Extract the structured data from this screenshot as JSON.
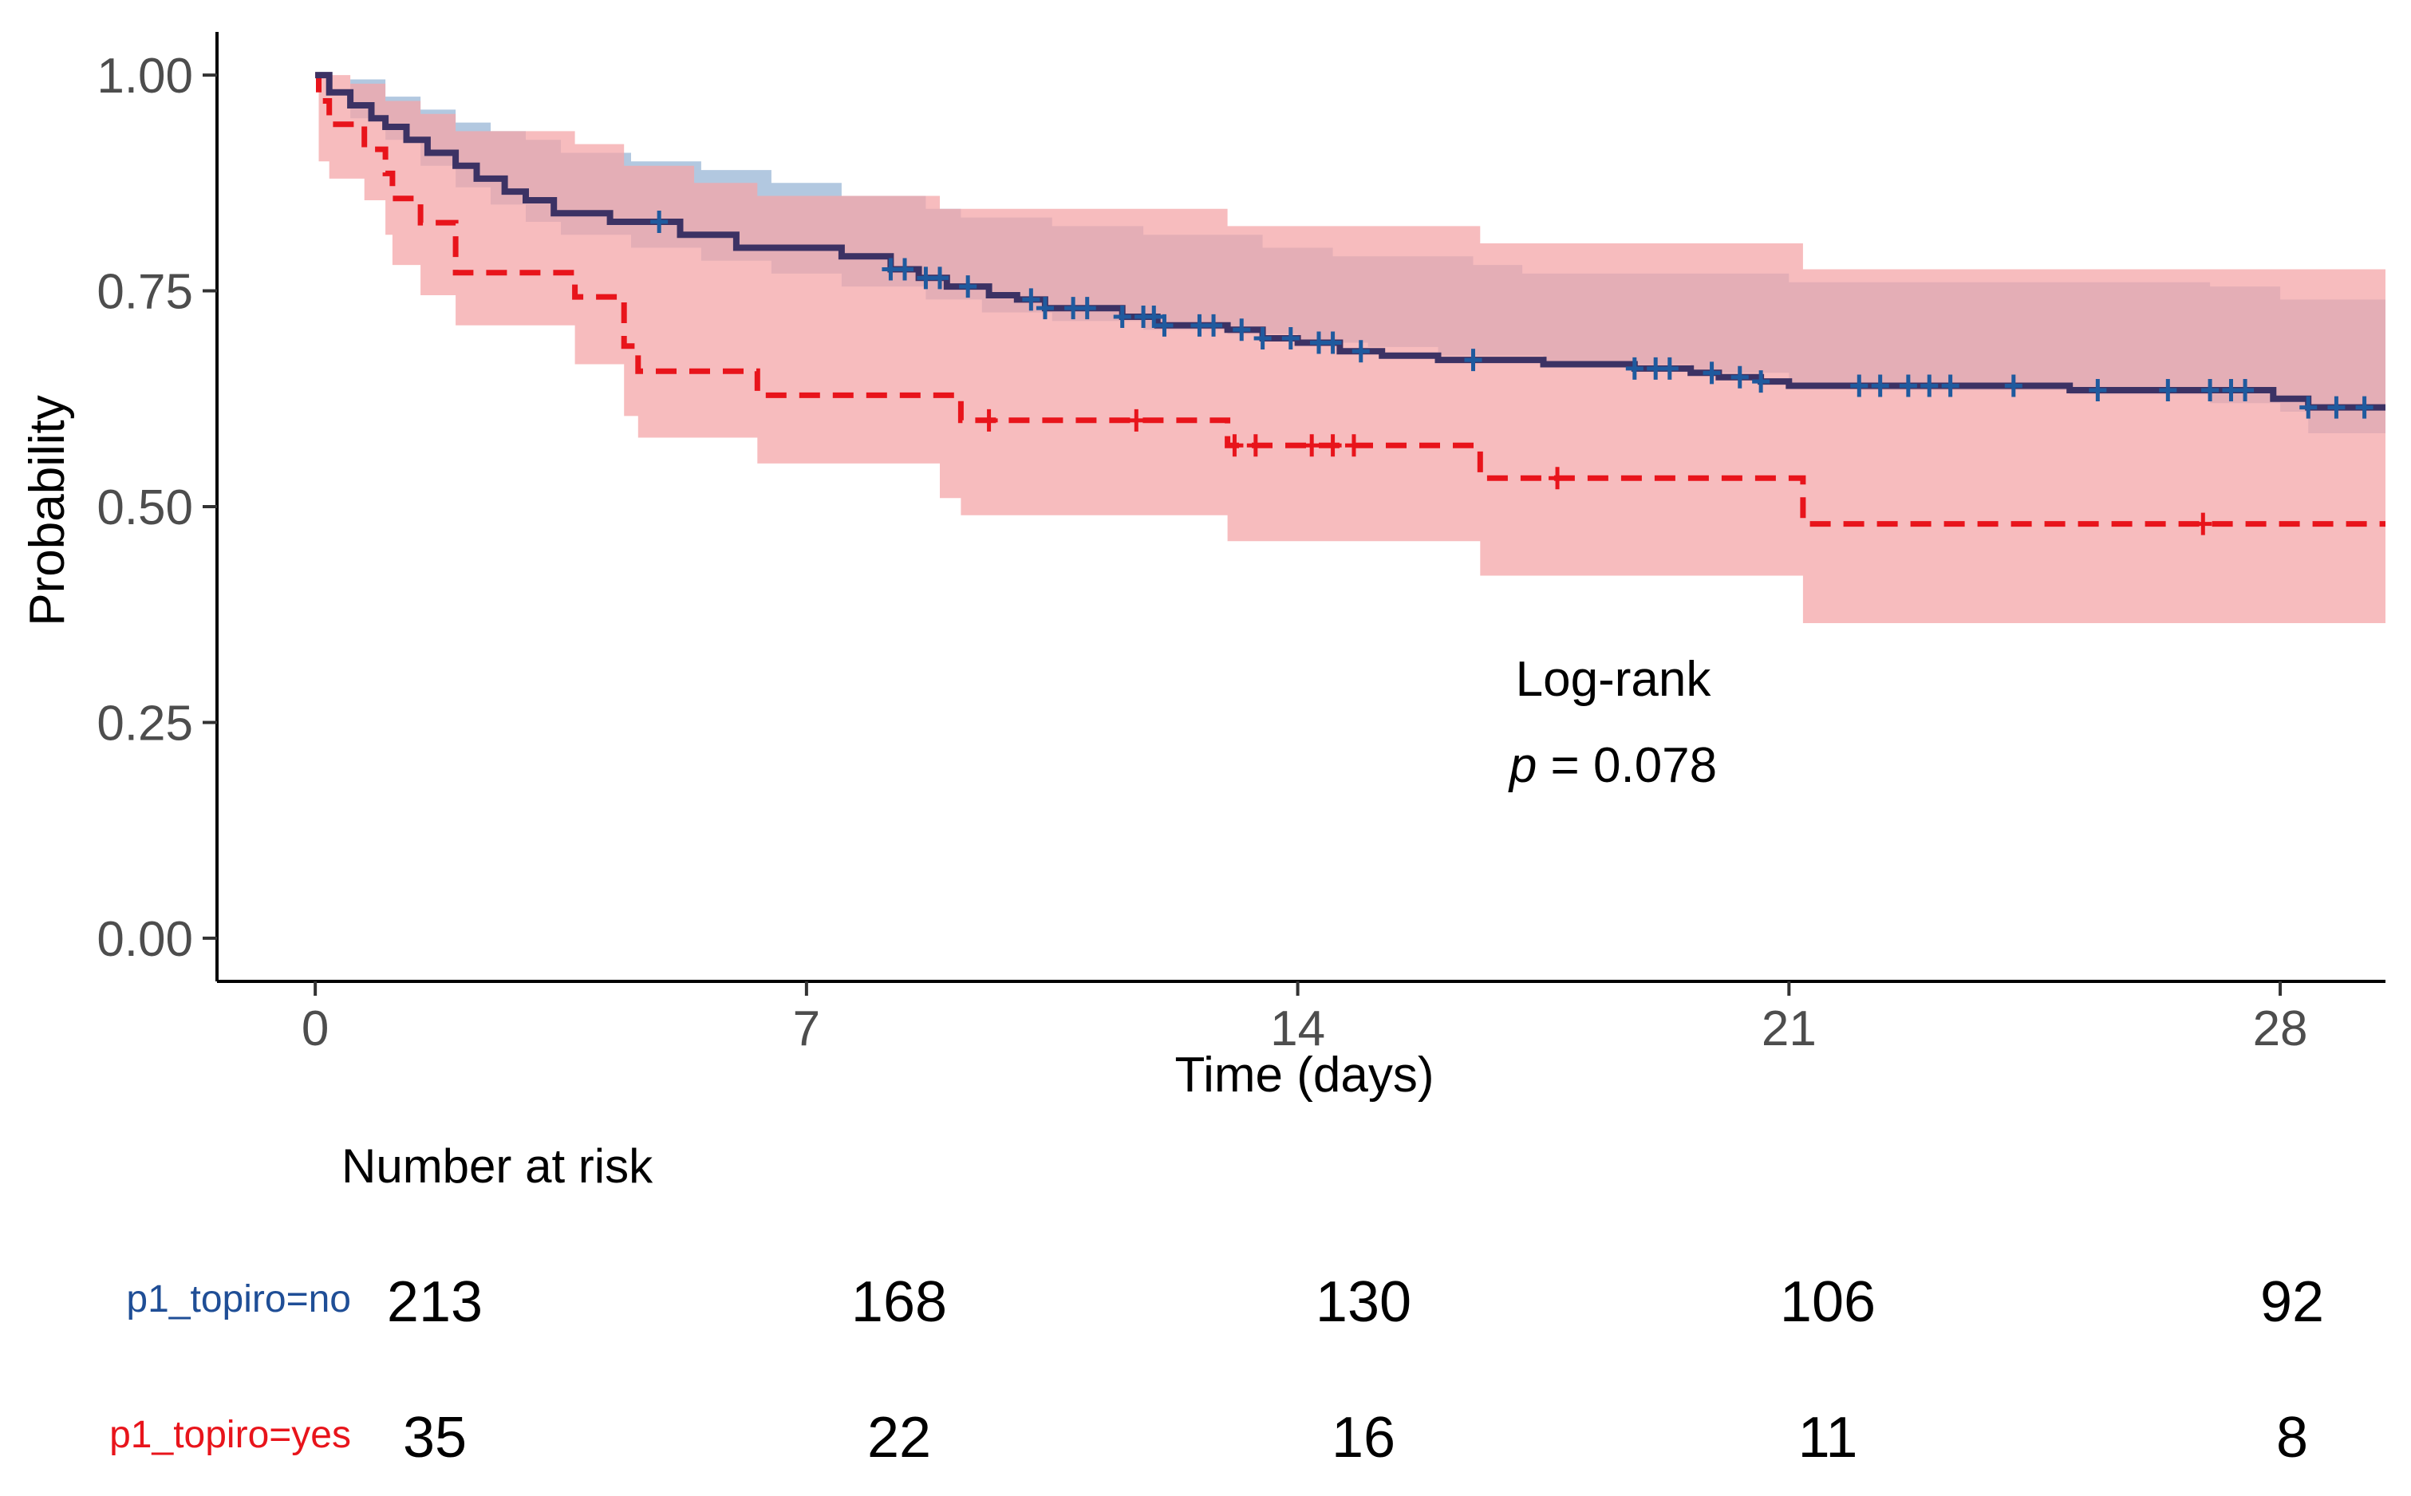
{
  "chart_data": {
    "type": "line",
    "subtype": "kaplan-meier",
    "xlabel": "Time (days)",
    "ylabel": "Probability",
    "xlim": [
      -1.4,
      29.5
    ],
    "ylim": [
      -0.05,
      1.05
    ],
    "x_ticks": [
      0,
      7,
      14,
      21,
      28
    ],
    "x_tick_labels": [
      "0",
      "7",
      "14",
      "21",
      "28"
    ],
    "y_ticks": [
      0,
      0.25,
      0.5,
      0.75,
      1.0
    ],
    "y_tick_labels": [
      "0.00",
      "0.25",
      "0.50",
      "0.75",
      "1.00"
    ],
    "grid": false,
    "annotation": {
      "line1": "Log-rank",
      "p_symbol": "p",
      "p_text": " = 0.078"
    },
    "series": [
      {
        "name": "p1_topiro=no",
        "color": "#1f4e96",
        "ci_color": "#7ea3cc",
        "dash": false,
        "steps": [
          [
            0,
            1.0
          ],
          [
            0.2,
            0.98
          ],
          [
            0.5,
            0.965
          ],
          [
            0.8,
            0.95
          ],
          [
            1.0,
            0.94
          ],
          [
            1.3,
            0.925
          ],
          [
            1.6,
            0.91
          ],
          [
            2.0,
            0.895
          ],
          [
            2.3,
            0.88
          ],
          [
            2.7,
            0.865
          ],
          [
            3.0,
            0.855
          ],
          [
            3.4,
            0.84
          ],
          [
            4.2,
            0.83
          ],
          [
            5.2,
            0.815
          ],
          [
            6.0,
            0.8
          ],
          [
            7.5,
            0.79
          ],
          [
            8.2,
            0.775
          ],
          [
            8.6,
            0.765
          ],
          [
            9.0,
            0.755
          ],
          [
            9.6,
            0.745
          ],
          [
            10.0,
            0.74
          ],
          [
            10.4,
            0.73
          ],
          [
            11.5,
            0.72
          ],
          [
            12.0,
            0.71
          ],
          [
            13.0,
            0.705
          ],
          [
            13.5,
            0.695
          ],
          [
            14.0,
            0.69
          ],
          [
            14.6,
            0.68
          ],
          [
            15.2,
            0.675
          ],
          [
            16.0,
            0.67
          ],
          [
            17.5,
            0.665
          ],
          [
            18.8,
            0.66
          ],
          [
            19.6,
            0.655
          ],
          [
            20.0,
            0.65
          ],
          [
            20.6,
            0.645
          ],
          [
            21.0,
            0.64
          ],
          [
            25.0,
            0.635
          ],
          [
            27.9,
            0.625
          ],
          [
            28.4,
            0.615
          ],
          [
            29.5,
            0.615
          ]
        ],
        "ci_upper": [
          [
            0,
            1.0
          ],
          [
            0.5,
            0.995
          ],
          [
            1.0,
            0.975
          ],
          [
            1.5,
            0.96
          ],
          [
            2.0,
            0.945
          ],
          [
            2.5,
            0.935
          ],
          [
            3.0,
            0.925
          ],
          [
            3.5,
            0.91
          ],
          [
            4.5,
            0.9
          ],
          [
            5.5,
            0.89
          ],
          [
            6.5,
            0.875
          ],
          [
            7.5,
            0.86
          ],
          [
            8.7,
            0.845
          ],
          [
            9.2,
            0.835
          ],
          [
            10.5,
            0.825
          ],
          [
            11.8,
            0.815
          ],
          [
            13.5,
            0.8
          ],
          [
            14.5,
            0.79
          ],
          [
            16.5,
            0.78
          ],
          [
            17.2,
            0.77
          ],
          [
            21.0,
            0.76
          ],
          [
            27.0,
            0.755
          ],
          [
            28.0,
            0.74
          ],
          [
            29.5,
            0.74
          ]
        ],
        "ci_lower": [
          [
            0,
            1.0
          ],
          [
            0.5,
            0.95
          ],
          [
            1.0,
            0.925
          ],
          [
            1.5,
            0.895
          ],
          [
            2.0,
            0.87
          ],
          [
            2.5,
            0.85
          ],
          [
            3.0,
            0.83
          ],
          [
            3.5,
            0.815
          ],
          [
            4.5,
            0.8
          ],
          [
            5.5,
            0.785
          ],
          [
            6.5,
            0.77
          ],
          [
            7.5,
            0.755
          ],
          [
            8.7,
            0.74
          ],
          [
            9.5,
            0.725
          ],
          [
            10.5,
            0.715
          ],
          [
            11.8,
            0.705
          ],
          [
            13.0,
            0.7
          ],
          [
            14.0,
            0.69
          ],
          [
            15.0,
            0.685
          ],
          [
            16.0,
            0.675
          ],
          [
            17.5,
            0.665
          ],
          [
            19.6,
            0.655
          ],
          [
            21.0,
            0.64
          ],
          [
            22.0,
            0.635
          ],
          [
            25.0,
            0.63
          ],
          [
            27.0,
            0.62
          ],
          [
            28.0,
            0.61
          ],
          [
            28.4,
            0.595
          ],
          [
            28.4,
            0.585
          ],
          [
            29.5,
            0.585
          ]
        ],
        "censor_x": [
          4.9,
          8.2,
          8.4,
          8.7,
          8.9,
          9.3,
          10.2,
          10.4,
          10.8,
          11.0,
          11.5,
          11.8,
          11.95,
          12.1,
          12.6,
          12.8,
          13.2,
          13.5,
          13.9,
          14.3,
          14.5,
          14.9,
          16.5,
          18.8,
          19.1,
          19.3,
          19.9,
          20.3,
          20.6,
          22.0,
          22.3,
          22.7,
          23.0,
          23.3,
          24.2,
          25.4,
          26.4,
          27.0,
          27.3,
          27.5,
          28.4,
          28.8,
          29.2
        ]
      },
      {
        "name": "p1_topiro=yes",
        "color": "#e8141b",
        "ci_color": "#f4a6a8",
        "dash": true,
        "steps": [
          [
            0,
            1.0
          ],
          [
            0.05,
            0.97
          ],
          [
            0.2,
            0.943
          ],
          [
            0.7,
            0.914
          ],
          [
            1.0,
            0.886
          ],
          [
            1.1,
            0.857
          ],
          [
            1.5,
            0.829
          ],
          [
            2.0,
            0.771
          ],
          [
            3.7,
            0.743
          ],
          [
            4.4,
            0.686
          ],
          [
            4.6,
            0.657
          ],
          [
            5.4,
            0.657
          ],
          [
            6.3,
            0.629
          ],
          [
            8.9,
            0.629
          ],
          [
            9.2,
            0.6
          ],
          [
            13.0,
            0.571
          ],
          [
            16.6,
            0.533
          ],
          [
            21.2,
            0.48
          ],
          [
            29.5,
            0.48
          ]
        ],
        "ci_upper": [
          [
            0,
            1.0
          ],
          [
            0.5,
            0.99
          ],
          [
            1.0,
            0.97
          ],
          [
            1.5,
            0.955
          ],
          [
            2.0,
            0.935
          ],
          [
            3.7,
            0.92
          ],
          [
            4.4,
            0.895
          ],
          [
            5.4,
            0.875
          ],
          [
            6.3,
            0.86
          ],
          [
            8.9,
            0.845
          ],
          [
            13.0,
            0.825
          ],
          [
            16.6,
            0.805
          ],
          [
            21.2,
            0.775
          ],
          [
            29.5,
            0.775
          ]
        ],
        "ci_lower": [
          [
            0,
            1.0
          ],
          [
            0.05,
            0.9
          ],
          [
            0.2,
            0.88
          ],
          [
            0.7,
            0.855
          ],
          [
            1.0,
            0.815
          ],
          [
            1.1,
            0.78
          ],
          [
            1.5,
            0.745
          ],
          [
            2.0,
            0.71
          ],
          [
            3.7,
            0.665
          ],
          [
            4.4,
            0.605
          ],
          [
            4.6,
            0.58
          ],
          [
            5.4,
            0.58
          ],
          [
            6.3,
            0.55
          ],
          [
            8.9,
            0.51
          ],
          [
            9.2,
            0.49
          ],
          [
            13.0,
            0.46
          ],
          [
            16.6,
            0.42
          ],
          [
            21.2,
            0.365
          ],
          [
            29.5,
            0.365
          ]
        ],
        "censor_x": [
          9.6,
          11.7,
          13.1,
          13.4,
          14.2,
          14.5,
          14.8,
          17.7,
          26.9
        ]
      }
    ],
    "risk_table": {
      "title": "Number at risk",
      "times": [
        0,
        7,
        14,
        21,
        28
      ],
      "rows": [
        {
          "label": "p1_topiro=no",
          "color": "#1f4e96",
          "values": [
            "213",
            "168",
            "130",
            "106",
            "92"
          ]
        },
        {
          "label": "p1_topiro=yes",
          "color": "#e8141b",
          "values": [
            "35",
            "22",
            "16",
            "11",
            "8"
          ]
        }
      ]
    }
  }
}
